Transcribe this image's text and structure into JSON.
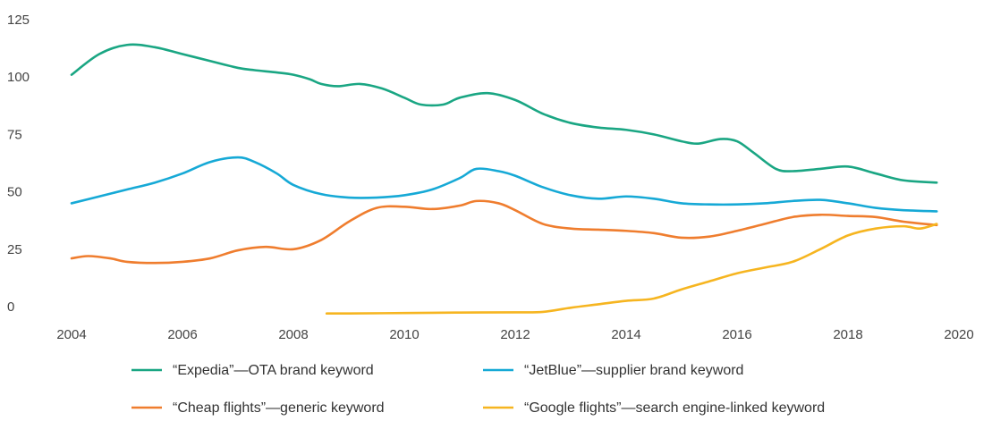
{
  "chart_data": {
    "type": "line",
    "title": "",
    "xlabel": "",
    "ylabel": "",
    "xlim": [
      2004,
      2020
    ],
    "ylim": [
      0,
      125
    ],
    "x_ticks": [
      2004,
      2006,
      2008,
      2010,
      2012,
      2014,
      2016,
      2018,
      2020
    ],
    "y_ticks": [
      0,
      25,
      50,
      75,
      100,
      125
    ],
    "grid": false,
    "legend_position": "bottom",
    "series": [
      {
        "name": "“Expedia”—OTA brand keyword",
        "color": "#1aa683",
        "x": [
          2004.0,
          2004.5,
          2005.0,
          2005.5,
          2006.0,
          2006.5,
          2007.0,
          2007.3,
          2007.7,
          2008.0,
          2008.3,
          2008.5,
          2008.8,
          2009.2,
          2009.6,
          2010.0,
          2010.3,
          2010.7,
          2011.0,
          2011.5,
          2012.0,
          2012.5,
          2013.0,
          2013.5,
          2014.0,
          2014.5,
          2015.0,
          2015.3,
          2015.7,
          2016.0,
          2016.3,
          2016.7,
          2017.0,
          2017.5,
          2018.0,
          2018.5,
          2019.0,
          2019.6
        ],
        "y": [
          101,
          110,
          114,
          113,
          110,
          107,
          104,
          103,
          102,
          101,
          99,
          97,
          96,
          97,
          95,
          91,
          88,
          88,
          91,
          93,
          90,
          84,
          80,
          78,
          77,
          75,
          72,
          71,
          73,
          72,
          67,
          60,
          59,
          60,
          61,
          58,
          55,
          54
        ]
      },
      {
        "name": "“JetBlue”—supplier brand keyword",
        "color": "#16a9d6",
        "x": [
          2004.0,
          2004.5,
          2005.0,
          2005.5,
          2006.0,
          2006.5,
          2007.0,
          2007.3,
          2007.7,
          2008.0,
          2008.5,
          2009.0,
          2009.5,
          2010.0,
          2010.5,
          2011.0,
          2011.3,
          2011.7,
          2012.0,
          2012.5,
          2013.0,
          2013.5,
          2014.0,
          2014.5,
          2015.0,
          2015.5,
          2016.0,
          2016.5,
          2017.0,
          2017.5,
          2018.0,
          2018.5,
          2019.0,
          2019.6
        ],
        "y": [
          45,
          48,
          51,
          54,
          58,
          63,
          65,
          63,
          58,
          53,
          49,
          47.5,
          47.5,
          48.5,
          51,
          56,
          60,
          59,
          57,
          52,
          48.5,
          47,
          48,
          47,
          45,
          44.5,
          44.5,
          45,
          46,
          46.5,
          45,
          43,
          42,
          41.5
        ]
      },
      {
        "name": "“Cheap flights”—generic keyword",
        "color": "#ef7d2e",
        "x": [
          2004.0,
          2004.3,
          2004.7,
          2005.0,
          2005.5,
          2006.0,
          2006.5,
          2007.0,
          2007.5,
          2008.0,
          2008.5,
          2009.0,
          2009.5,
          2010.0,
          2010.5,
          2011.0,
          2011.3,
          2011.7,
          2012.0,
          2012.5,
          2013.0,
          2013.5,
          2014.0,
          2014.5,
          2015.0,
          2015.5,
          2016.0,
          2016.5,
          2017.0,
          2017.5,
          2018.0,
          2018.5,
          2019.0,
          2019.6
        ],
        "y": [
          21,
          22,
          21,
          19.5,
          19,
          19.5,
          21,
          24.5,
          26,
          25,
          29,
          37,
          43,
          43.5,
          42.5,
          44,
          46,
          45,
          42,
          36,
          34,
          33.5,
          33,
          32,
          30,
          30.5,
          33,
          36,
          39,
          40,
          39.5,
          39,
          37,
          35.5
        ]
      },
      {
        "name": "“Google flights”—search engine-linked keyword",
        "color": "#f6b520",
        "x": [
          2008.6,
          2009.0,
          2010.0,
          2011.0,
          2012.0,
          2012.5,
          2013.0,
          2013.5,
          2014.0,
          2014.5,
          2015.0,
          2015.5,
          2016.0,
          2016.5,
          2017.0,
          2017.5,
          2018.0,
          2018.5,
          2019.0,
          2019.3,
          2019.6
        ],
        "y": [
          -3,
          -3,
          -2.8,
          -2.6,
          -2.5,
          -2.3,
          -0.5,
          1,
          2.5,
          3.5,
          7.5,
          11,
          14.5,
          17,
          19.5,
          25,
          31,
          34,
          35,
          34,
          36
        ]
      }
    ]
  }
}
